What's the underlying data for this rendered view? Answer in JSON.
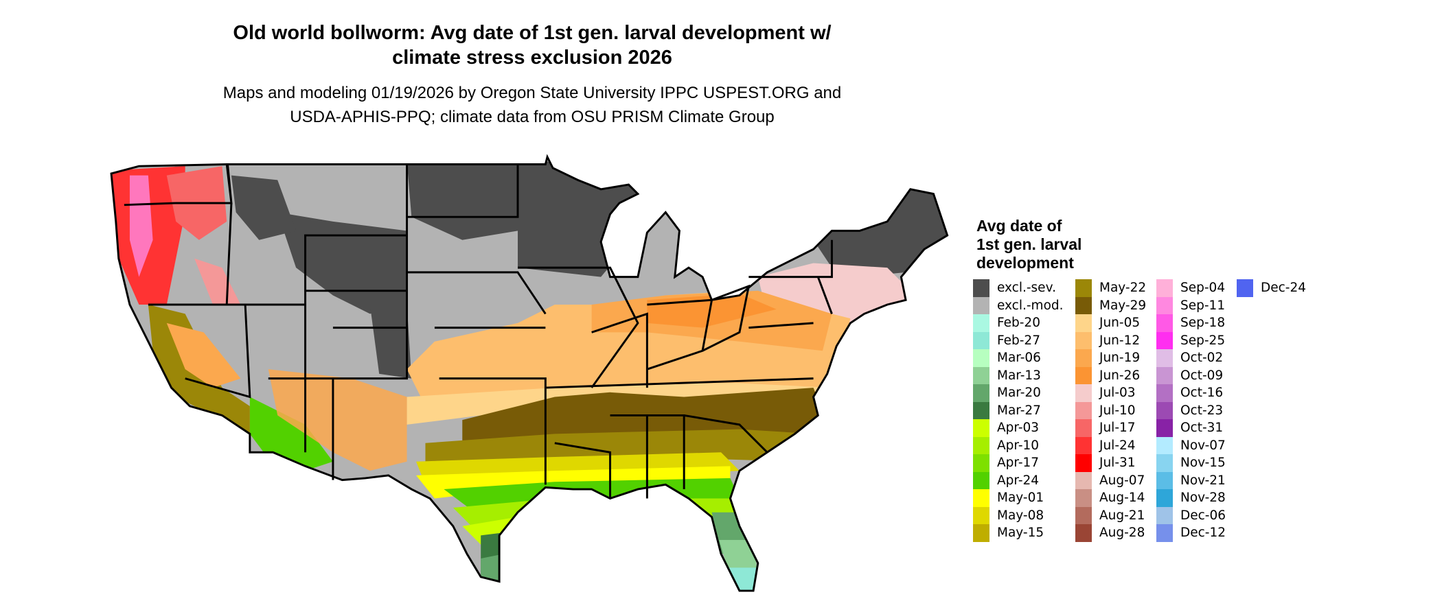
{
  "title": {
    "line1": "Old world bollworm: Avg date of 1st gen. larval development w/",
    "line2": "climate stress exclusion 2026"
  },
  "subtitle": {
    "line1": "Maps and modeling 01/19/2026 by Oregon State University IPPC USPEST.ORG and",
    "line2": "USDA-APHIS-PPQ; climate data from OSU PRISM Climate Group"
  },
  "map": {
    "region": "Contiguous United States",
    "pattern": "excluded (gray) across north and interior west; dates progress from Feb-Mar in south Florida and south Texas to Jun-Jul in mid-latitudes and Jul-Oct along the Pacific Northwest"
  },
  "legend": {
    "title_lines": [
      "Avg date of",
      "1st gen. larval",
      "development"
    ],
    "columns": [
      [
        {
          "label": "excl.-sev.",
          "color": "#4d4d4d"
        },
        {
          "label": "excl.-mod.",
          "color": "#b3b3b3"
        },
        {
          "label": "Feb-20",
          "color": "#aaf8e2"
        },
        {
          "label": "Feb-27",
          "color": "#8ee8d6"
        },
        {
          "label": "Mar-06",
          "color": "#b7ffc0"
        },
        {
          "label": "Mar-13",
          "color": "#8fd195"
        },
        {
          "label": "Mar-20",
          "color": "#63a76b"
        },
        {
          "label": "Mar-27",
          "color": "#3a7a40"
        },
        {
          "label": "Apr-03",
          "color": "#ccff00"
        },
        {
          "label": "Apr-10",
          "color": "#a6ee00"
        },
        {
          "label": "Apr-17",
          "color": "#7ee000"
        },
        {
          "label": "Apr-24",
          "color": "#52d100"
        },
        {
          "label": "May-01",
          "color": "#ffff00"
        },
        {
          "label": "May-08",
          "color": "#dfd800"
        },
        {
          "label": "May-15",
          "color": "#bfae00"
        }
      ],
      [
        {
          "label": "May-22",
          "color": "#9b8708"
        },
        {
          "label": "May-29",
          "color": "#785b07"
        },
        {
          "label": "Jun-05",
          "color": "#fed58a"
        },
        {
          "label": "Jun-12",
          "color": "#fdbe6d"
        },
        {
          "label": "Jun-19",
          "color": "#fba84e"
        },
        {
          "label": "Jun-26",
          "color": "#fb9433"
        },
        {
          "label": "Jul-03",
          "color": "#f5cccc"
        },
        {
          "label": "Jul-10",
          "color": "#f49898"
        },
        {
          "label": "Jul-17",
          "color": "#f76666"
        },
        {
          "label": "Jul-24",
          "color": "#ff3333"
        },
        {
          "label": "Jul-31",
          "color": "#ff0000"
        },
        {
          "label": "Aug-07",
          "color": "#e6b8b0"
        },
        {
          "label": "Aug-14",
          "color": "#c98f84"
        },
        {
          "label": "Aug-21",
          "color": "#b36b5d"
        },
        {
          "label": "Aug-28",
          "color": "#9a4535"
        }
      ],
      [
        {
          "label": "Sep-04",
          "color": "#ffb0d9"
        },
        {
          "label": "Sep-11",
          "color": "#ff88e0"
        },
        {
          "label": "Sep-18",
          "color": "#ff59e6"
        },
        {
          "label": "Sep-25",
          "color": "#ff2ef0"
        },
        {
          "label": "Oct-02",
          "color": "#e0bde6"
        },
        {
          "label": "Oct-09",
          "color": "#c995d3"
        },
        {
          "label": "Oct-16",
          "color": "#b370c4"
        },
        {
          "label": "Oct-23",
          "color": "#9c4ab3"
        },
        {
          "label": "Oct-31",
          "color": "#8822a6"
        },
        {
          "label": "Nov-07",
          "color": "#b3ebff"
        },
        {
          "label": "Nov-15",
          "color": "#88d4f0"
        },
        {
          "label": "Nov-21",
          "color": "#5bbde6"
        },
        {
          "label": "Nov-28",
          "color": "#2ea6d9"
        },
        {
          "label": "Dec-06",
          "color": "#9fc3e8"
        },
        {
          "label": "Dec-12",
          "color": "#7690eb"
        }
      ],
      [
        {
          "label": "Dec-24",
          "color": "#5064f0"
        }
      ]
    ]
  }
}
